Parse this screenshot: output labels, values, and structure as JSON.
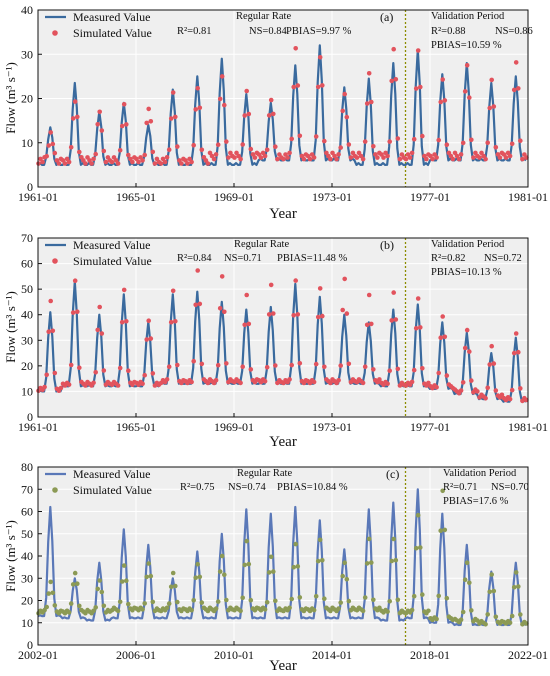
{
  "colors": {
    "measured": "#3a6a9e",
    "measured_c": "#5a78b8",
    "simulated": "#e2535d",
    "simulated_c": "#8c9a55",
    "plot_bg": "#efefef",
    "divider": "#8c8c00"
  },
  "chart_data": [
    {
      "type": "line",
      "panel_label": "(a)",
      "xlabel": "Year",
      "ylabel": "Flow (m³ s⁻¹)",
      "ylim": [
        0,
        40
      ],
      "yticks": [
        0,
        10,
        20,
        30,
        40
      ],
      "xlim": [
        1961.0,
        1981.0
      ],
      "xticks": [
        1961.0,
        1965.0,
        1969.0,
        1973.0,
        1977.0,
        1981.0
      ],
      "xtick_labels": [
        "1961-01",
        "1965-01",
        "1969-01",
        "1973-01",
        "1977-01",
        "1981-01"
      ],
      "divider_x": 1976.0,
      "series": [
        {
          "name": "Measured Value",
          "kind": "line",
          "baseline": [
            5,
            5,
            5,
            5,
            5,
            5,
            5,
            5,
            5,
            6,
            6,
            6,
            6,
            5,
            5,
            5,
            6,
            6,
            6,
            6
          ],
          "peaks": [
            13.5,
            23.5,
            17,
            19,
            14,
            22,
            25,
            29,
            21,
            19,
            27.5,
            32,
            22.5,
            24.5,
            28,
            31,
            25.5,
            28,
            23.5,
            25
          ]
        },
        {
          "name": "Simulated Value",
          "kind": "markers",
          "baseline": [
            6,
            6,
            6,
            6,
            6,
            6,
            6,
            7,
            7,
            7,
            7,
            7,
            7,
            7,
            7,
            7,
            7,
            7,
            7,
            7
          ],
          "peaks": [
            12,
            20,
            17,
            18,
            18,
            21,
            23,
            25,
            21,
            20,
            31,
            30,
            21,
            25,
            31.5,
            30.5,
            25,
            27.5,
            23.5,
            28.5
          ]
        }
      ],
      "regular": {
        "title": "Regular Rate",
        "r2": "R²=0.81",
        "ns": "NS=0.84",
        "pbias": "PBIAS=9.97 %"
      },
      "validation": {
        "title": "Validation Period",
        "r2": "R²=0.88",
        "ns": "NS=0.86",
        "pbias": "PBIAS=10.59 %"
      }
    },
    {
      "type": "line",
      "panel_label": "(b)",
      "xlabel": "Year",
      "ylabel": "Flow (m³ s⁻¹)",
      "ylim": [
        0,
        70
      ],
      "yticks": [
        0,
        10,
        20,
        30,
        40,
        50,
        60,
        70
      ],
      "xlim": [
        1961.0,
        1981.0
      ],
      "xticks": [
        1961.0,
        1965.0,
        1969.0,
        1973.0,
        1977.0,
        1981.0
      ],
      "xtick_labels": [
        "1961-01",
        "1965-01",
        "1969-01",
        "1973-01",
        "1977-01",
        "1981-01"
      ],
      "divider_x": 1976.0,
      "series": [
        {
          "name": "Measured Value",
          "kind": "line",
          "baseline": [
            10,
            12,
            12,
            12,
            12,
            13,
            13,
            13,
            13,
            13,
            13,
            13,
            13,
            13,
            12,
            12,
            11,
            9,
            7,
            6
          ],
          "peaks": [
            41,
            53,
            40,
            48,
            37,
            48,
            49,
            45,
            42,
            43,
            52,
            47,
            40,
            37,
            42,
            44,
            37,
            33,
            25,
            31
          ]
        },
        {
          "name": "Simulated Value",
          "kind": "markers",
          "baseline": [
            11,
            13,
            13,
            13,
            13,
            14,
            14,
            14,
            14,
            14,
            14,
            14,
            14,
            14,
            13,
            13,
            12,
            10,
            8,
            7
          ],
          "peaks": [
            45,
            54,
            43,
            49,
            38,
            49,
            58,
            55,
            47,
            52,
            53,
            51,
            54,
            47,
            49,
            46,
            40,
            34,
            27,
            33
          ]
        }
      ],
      "regular": {
        "title": "Regular Rate",
        "r2": "R²=0.84",
        "ns": "NS=0.71",
        "pbias": "PBIAS=11.48 %"
      },
      "validation": {
        "title": "Validation Period",
        "r2": "R²=0.82",
        "ns": "NS=0.72",
        "pbias": "PBIAS=10.13 %"
      }
    },
    {
      "type": "line",
      "panel_label": "(c)",
      "xlabel": "Year",
      "ylabel": "Flow (m³ s⁻¹)",
      "ylim": [
        0,
        80
      ],
      "yticks": [
        0,
        10,
        20,
        30,
        40,
        50,
        60,
        70,
        80
      ],
      "xlim": [
        2002.0,
        2022.0
      ],
      "xticks": [
        2002.0,
        2006.0,
        2010.0,
        2014.0,
        2018.0,
        2022.0
      ],
      "xtick_labels": [
        "2002-01",
        "2006-01",
        "2010-01",
        "2014-01",
        "2018-01",
        "2022-01"
      ],
      "divider_x": 2017.0,
      "series": [
        {
          "name": "Measured Value",
          "kind": "line",
          "baseline": [
            13,
            12,
            11,
            12,
            12,
            12,
            12,
            12,
            12,
            12,
            12,
            12,
            12,
            12,
            11,
            12,
            10,
            9,
            9,
            9
          ],
          "peaks": [
            62,
            30,
            37,
            52,
            45,
            30,
            42,
            50,
            61,
            59,
            62,
            56,
            43,
            61,
            64,
            70,
            59,
            45,
            33,
            37
          ]
        },
        {
          "name": "Simulated Value",
          "kind": "markers",
          "baseline": [
            15,
            15,
            15,
            16,
            16,
            16,
            16,
            16,
            16,
            16,
            16,
            16,
            16,
            16,
            15,
            15,
            12,
            11,
            10,
            10
          ],
          "peaks": [
            28,
            33,
            29,
            35,
            37,
            32,
            37,
            40,
            46,
            40,
            45,
            48,
            37,
            47,
            48,
            58,
            70,
            37,
            31,
            33
          ]
        }
      ],
      "regular": {
        "title": "Regular Rate",
        "r2": "R²=0.75",
        "ns": "NS=0.74",
        "pbias": "PBIAS=10.84 %"
      },
      "validation": {
        "title": "Validation Period",
        "r2": "R²=0.71",
        "ns": "NS=0.70",
        "pbias": "PBIAS=17.6 %"
      }
    }
  ]
}
